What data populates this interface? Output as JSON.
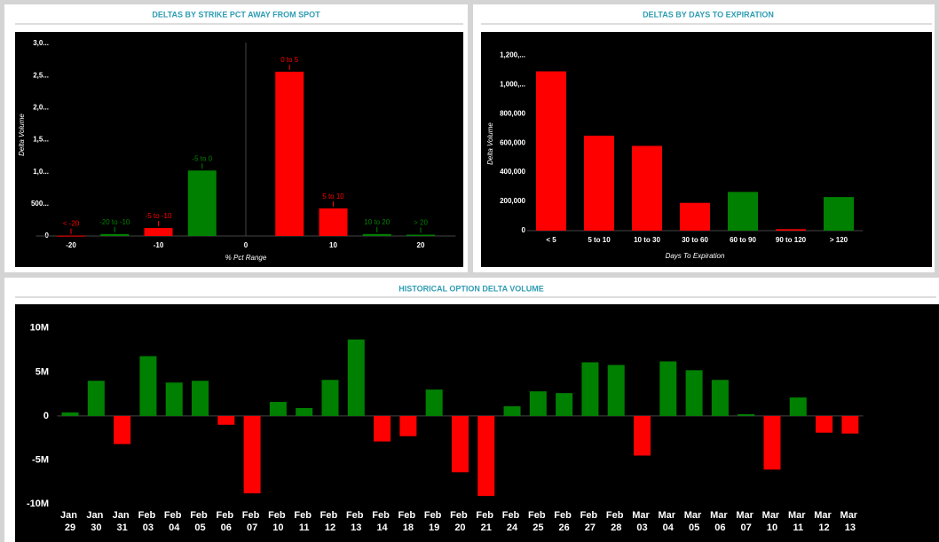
{
  "chart_data": [
    {
      "type": "bar",
      "title": "DELTAS BY STRIKE PCT AWAY FROM SPOT",
      "x_label": "% Pct Range",
      "y_label": "Delta Volume",
      "x": [
        -20,
        -15,
        -10,
        -5,
        5,
        10,
        15,
        20
      ],
      "labels": [
        "< -20",
        "-20 to -10",
        "-5 to -10",
        "-5 to 0",
        "0 to 5",
        "5 to 10",
        "10 to 20",
        "> 20"
      ],
      "values": [
        5000,
        30000,
        125000,
        1020000,
        2560000,
        430000,
        30000,
        20000
      ],
      "colors": [
        "#ff0000",
        "#008000",
        "#ff0000",
        "#008000",
        "#ff0000",
        "#ff0000",
        "#008000",
        "#008000"
      ],
      "xlim": [
        -24,
        24
      ],
      "xticks": [
        -20,
        -10,
        0,
        10,
        20
      ],
      "ylim": [
        0,
        3180000
      ],
      "yticks": [
        0,
        {
          "value": 500000,
          "label": "500..."
        },
        {
          "value": 1000000,
          "label": "1,0..."
        },
        {
          "value": 1500000,
          "label": "1,5..."
        },
        {
          "value": 2000000,
          "label": "2,0..."
        },
        {
          "value": 2500000,
          "label": "2,5..."
        },
        {
          "value": 3000000,
          "label": "3,0..."
        }
      ]
    },
    {
      "type": "bar",
      "title": "DELTAS BY DAYS TO EXPIRATION",
      "x_label": "Days To Expiration",
      "y_label": "Delta Volume",
      "categories": [
        "< 5",
        "5 to 10",
        "10 to 30",
        "30 to 60",
        "60 to 90",
        "90 to 120",
        "> 120"
      ],
      "values": [
        1090000,
        650000,
        580000,
        190000,
        265000,
        10000,
        230000
      ],
      "colors": [
        "#ff0000",
        "#ff0000",
        "#ff0000",
        "#ff0000",
        "#008000",
        "#ff0000",
        "#008000"
      ],
      "ylim": [
        0,
        1360000
      ],
      "yticks": [
        0,
        {
          "value": 200000,
          "label": "200,000"
        },
        {
          "value": 400000,
          "label": "400,000"
        },
        {
          "value": 600000,
          "label": "600,000"
        },
        {
          "value": 800000,
          "label": "800,000"
        },
        {
          "value": 1000000,
          "label": "1,000,..."
        },
        {
          "value": 1200000,
          "label": "1,200,..."
        }
      ]
    },
    {
      "type": "bar",
      "title": "HISTORICAL OPTION DELTA VOLUME",
      "categories": [
        "Jan 29",
        "Jan 30",
        "Jan 31",
        "Feb 03",
        "Feb 04",
        "Feb 05",
        "Feb 06",
        "Feb 07",
        "Feb 10",
        "Feb 11",
        "Feb 12",
        "Feb 13",
        "Feb 14",
        "Feb 18",
        "Feb 19",
        "Feb 20",
        "Feb 21",
        "Feb 24",
        "Feb 25",
        "Feb 26",
        "Feb 27",
        "Feb 28",
        "Mar 03",
        "Mar 04",
        "Mar 05",
        "Mar 06",
        "Mar 07",
        "Mar 10",
        "Mar 11",
        "Mar 12",
        "Mar 13"
      ],
      "values": [
        400000,
        4000000,
        -3200000,
        6800000,
        3800000,
        4000000,
        -1000000,
        -8800000,
        1600000,
        900000,
        4100000,
        8700000,
        -2900000,
        -2300000,
        3000000,
        -6400000,
        -9100000,
        1100000,
        2800000,
        2600000,
        6100000,
        5800000,
        -4500000,
        6200000,
        5200000,
        4100000,
        200000,
        -6100000,
        2100000,
        -1900000,
        -2000000
      ],
      "positive_color": "#008000",
      "negative_color": "#ff0000",
      "ylim": [
        -10400000,
        12500000
      ],
      "yticks": [
        {
          "value": -10000000,
          "label": "-10M"
        },
        {
          "value": -5000000,
          "label": "-5M"
        },
        0,
        {
          "value": 5000000,
          "label": "5M"
        },
        {
          "value": 10000000,
          "label": "10M"
        }
      ]
    }
  ]
}
